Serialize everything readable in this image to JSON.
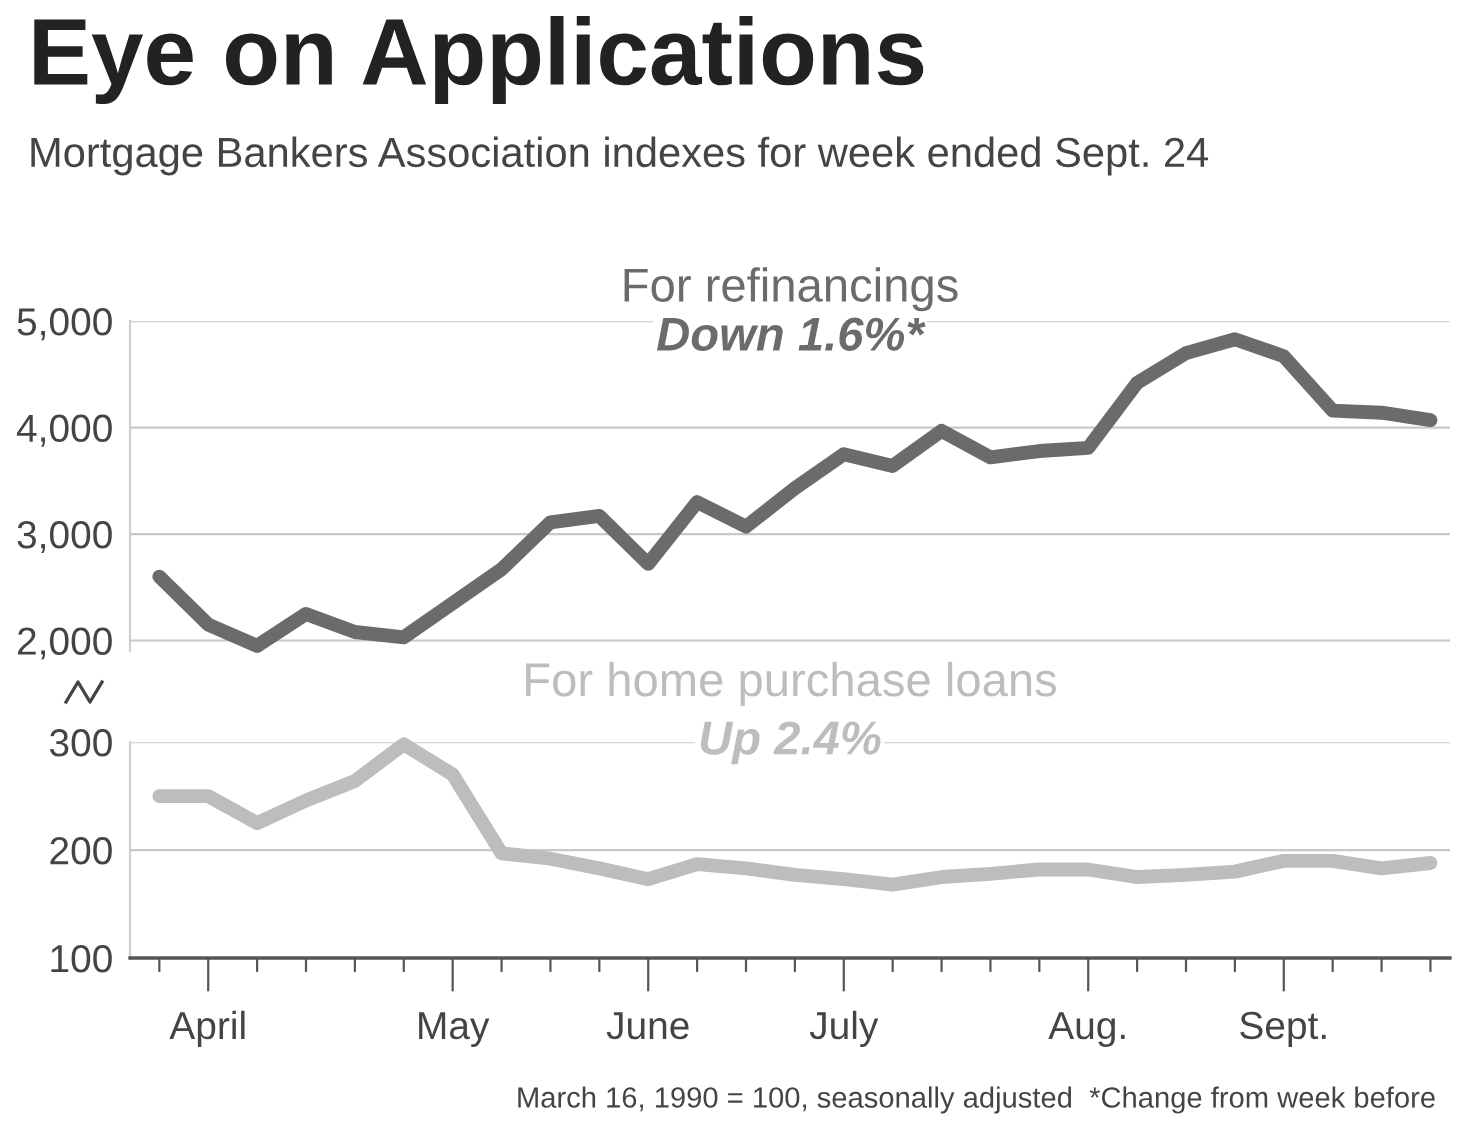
{
  "chart_data": [
    {
      "type": "line",
      "title": "Eye on Applications",
      "subtitle": "Mortgage Bankers Association indexes for week ended Sept. 24",
      "categories": [
        null,
        null,
        null,
        null,
        null,
        null,
        null,
        null,
        null,
        null,
        null,
        null,
        null,
        null,
        null,
        null,
        null,
        null,
        null,
        null,
        null,
        null,
        null,
        null,
        null,
        null,
        null
      ],
      "series": [
        {
          "name": "For refinancings",
          "color": "#6b6b6b",
          "values": [
            2600,
            2150,
            1950,
            2250,
            2080,
            2030,
            2350,
            2670,
            3110,
            3170,
            2720,
            3300,
            3070,
            3430,
            3750,
            3640,
            3970,
            3720,
            3780,
            3810,
            4420,
            4700,
            4830,
            4670,
            4160,
            4140,
            4070
          ]
        }
      ],
      "annotations": [
        "Down 1.6%*"
      ],
      "ylim": [
        1900,
        5000
      ],
      "yticks": [
        {
          "value": 2000,
          "label": "2,000"
        },
        {
          "value": 3000,
          "label": "3,000"
        },
        {
          "value": 4000,
          "label": "4,000"
        },
        {
          "value": 5000,
          "label": "5,000"
        }
      ],
      "grid": "y",
      "tick_labels": "y"
    },
    {
      "type": "line",
      "categories": [
        null,
        "April",
        null,
        null,
        null,
        null,
        "May",
        null,
        null,
        null,
        "June",
        null,
        null,
        null,
        "July",
        null,
        null,
        null,
        null,
        "Aug.",
        null,
        null,
        null,
        "Sept.",
        null,
        null,
        null
      ],
      "series": [
        {
          "name": "For home purchase loans",
          "color": "#bdbdbd",
          "values": [
            250,
            250,
            225,
            246,
            264,
            298,
            270,
            197,
            192,
            183,
            173,
            187,
            183,
            177,
            173,
            168,
            175,
            178,
            182,
            182,
            175,
            177,
            180,
            190,
            190,
            183,
            188
          ]
        }
      ],
      "annotations": [
        "Up 2.4%",
        "March 16, 1990 = 100, seasonally adjusted",
        "*Change from week before"
      ],
      "ylim": [
        100,
        300
      ],
      "yticks": [
        100,
        200,
        300
      ],
      "grid": "y"
    }
  ]
}
